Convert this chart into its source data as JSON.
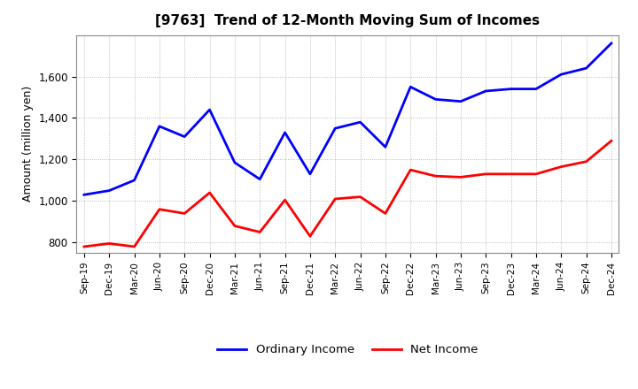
{
  "title": "[9763]  Trend of 12-Month Moving Sum of Incomes",
  "ylabel": "Amount (million yen)",
  "xlabels": [
    "Sep-19",
    "Dec-19",
    "Mar-20",
    "Jun-20",
    "Sep-20",
    "Dec-20",
    "Mar-21",
    "Jun-21",
    "Sep-21",
    "Dec-21",
    "Mar-22",
    "Jun-22",
    "Sep-22",
    "Dec-22",
    "Mar-23",
    "Jun-23",
    "Sep-23",
    "Dec-23",
    "Mar-24",
    "Jun-24",
    "Sep-24",
    "Dec-24"
  ],
  "ordinary_income": [
    1030,
    1050,
    1100,
    1360,
    1310,
    1440,
    1185,
    1105,
    1330,
    1130,
    1350,
    1380,
    1260,
    1550,
    1490,
    1480,
    1530,
    1540,
    1540,
    1610,
    1640,
    1760
  ],
  "net_income": [
    780,
    795,
    780,
    960,
    940,
    1040,
    880,
    850,
    1005,
    830,
    1010,
    1020,
    940,
    1150,
    1120,
    1115,
    1130,
    1130,
    1130,
    1165,
    1190,
    1290
  ],
  "ordinary_color": "#0000FF",
  "net_color": "#FF0000",
  "ylim": [
    750,
    1800
  ],
  "yticks": [
    800,
    1000,
    1200,
    1400,
    1600
  ],
  "background_color": "#FFFFFF",
  "grid_color": "#AAAAAA",
  "legend_labels": [
    "Ordinary Income",
    "Net Income"
  ]
}
